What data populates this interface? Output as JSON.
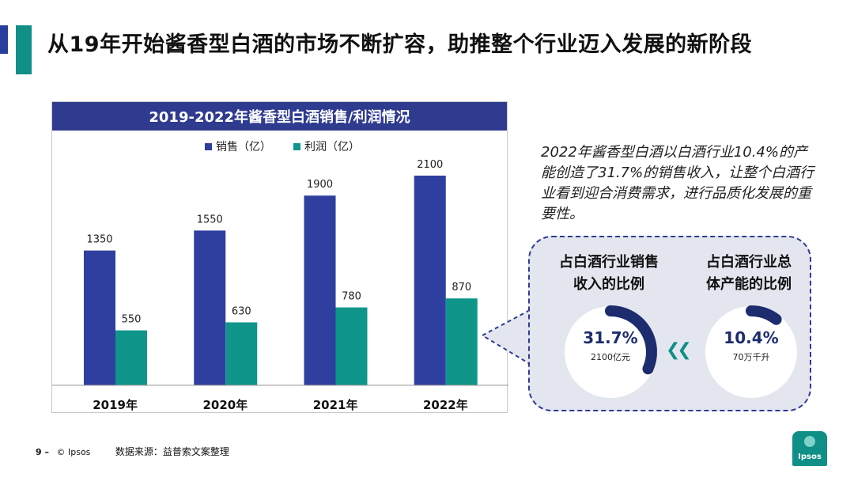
{
  "page": {
    "title": "从19年开始酱香型白酒的市场不断扩容，助推整个行业迈入发展的新阶段",
    "footer_page": "9 –",
    "footer_copyright": "© Ipsos",
    "footer_source": "数据来源：益普索文案整理",
    "logo_text": "Ipsos"
  },
  "colors": {
    "sales": "#2e3f9f",
    "profit": "#0f958a",
    "header": "#2e3b8f",
    "ring_dark": "#1d2c6e",
    "ring_teal": "#0f8f86"
  },
  "chart_data": {
    "type": "bar",
    "title": "2019-2022年酱香型白酒销售/利润情况",
    "categories": [
      "2019年",
      "2020年",
      "2021年",
      "2022年"
    ],
    "series": [
      {
        "name": "销售（亿）",
        "values": [
          1350,
          1550,
          1900,
          2100
        ]
      },
      {
        "name": "利润（亿）",
        "values": [
          550,
          630,
          780,
          870
        ]
      }
    ],
    "ylim": [
      0,
      2100
    ],
    "xlabel": "",
    "ylabel": "",
    "legend": "top"
  },
  "note": {
    "text": "2022年酱香型白酒以白酒行业10.4%的产能创造了31.7%的销售收入，让整个白酒行业看到迎合消费需求，进行品质化发展的重要性。"
  },
  "panel": {
    "left_label_line1": "占白酒行业销售",
    "left_label_line2": "收入的比例",
    "right_label_line1": "占白酒行业总",
    "right_label_line2": "体产能的比例",
    "left_pct": "31.7%",
    "left_sub": "2100亿元",
    "right_pct": "10.4%",
    "right_sub": "70万千升",
    "left_fraction": 0.317,
    "right_fraction": 0.104,
    "arrows": "❮❮"
  }
}
